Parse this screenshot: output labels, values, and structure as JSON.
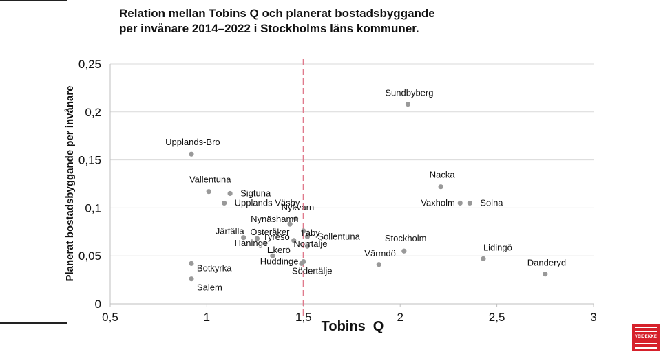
{
  "title_lines": [
    "Relation mellan Tobins Q och planerat bostadsbyggande",
    "per invånare 2014–2022 i Stockholms läns kommuner."
  ],
  "brand": {
    "logo_text": "VEIDEKKE",
    "accent": "#d6212b"
  },
  "chart_data": {
    "type": "scatter",
    "title": "",
    "xlabel": "Tobins  Q",
    "ylabel": "Planerat bostadsbyggande per invånare",
    "xlim": [
      0.5,
      3
    ],
    "ylim": [
      0,
      0.25
    ],
    "x_ticks": [
      0.5,
      1,
      1.5,
      2,
      2.5,
      3
    ],
    "y_ticks": [
      0,
      0.05,
      0.1,
      0.15,
      0.2,
      0.25
    ],
    "x_tick_labels": [
      "0,5",
      "1",
      "1,5",
      "2",
      "2,5",
      "3"
    ],
    "y_tick_labels": [
      "0",
      "0,05",
      "0,1",
      "0,15",
      "0,2",
      "0,25"
    ],
    "grid": "horizontal",
    "point_color": "#999999",
    "reference_line": {
      "x": 1.5,
      "style": "dashed",
      "color": "#e07a8c"
    },
    "points": [
      {
        "label": "Sundbyberg",
        "x": 2.04,
        "y": 0.208
      },
      {
        "label": "Upplands-Bro",
        "x": 0.92,
        "y": 0.156
      },
      {
        "label": "Nacka",
        "x": 2.21,
        "y": 0.122
      },
      {
        "label": "Vallentuna",
        "x": 1.01,
        "y": 0.117
      },
      {
        "label": "Sigtuna",
        "x": 1.12,
        "y": 0.115
      },
      {
        "label": "Upplands Väsby",
        "x": 1.09,
        "y": 0.105
      },
      {
        "label": "Vaxholm",
        "x": 2.31,
        "y": 0.105
      },
      {
        "label": "Solna",
        "x": 2.36,
        "y": 0.105
      },
      {
        "label": "Nykvarn",
        "x": 1.46,
        "y": 0.089
      },
      {
        "label": "Nynäshamn",
        "x": 1.43,
        "y": 0.083
      },
      {
        "label": "Täby",
        "x": 1.5,
        "y": 0.076
      },
      {
        "label": "Järfälla",
        "x": 1.19,
        "y": 0.069
      },
      {
        "label": "Österåker",
        "x": 1.26,
        "y": 0.068
      },
      {
        "label": "Sollentuna",
        "x": 1.52,
        "y": 0.07
      },
      {
        "label": "Haninge",
        "x": 1.3,
        "y": 0.063
      },
      {
        "label": "Tyresö",
        "x": 1.45,
        "y": 0.066
      },
      {
        "label": "Norrtälje",
        "x": 1.52,
        "y": 0.06
      },
      {
        "label": "Stockholm",
        "x": 2.02,
        "y": 0.055
      },
      {
        "label": "Ekerö",
        "x": 1.34,
        "y": 0.05
      },
      {
        "label": "Värmdö",
        "x": 1.89,
        "y": 0.041
      },
      {
        "label": "Lidingö",
        "x": 2.43,
        "y": 0.047
      },
      {
        "label": "Huddinge",
        "x": 1.5,
        "y": 0.044
      },
      {
        "label": "Södertälje",
        "x": 1.49,
        "y": 0.042
      },
      {
        "label": "Danderyd",
        "x": 2.75,
        "y": 0.031
      },
      {
        "label": "Botkyrka",
        "x": 0.92,
        "y": 0.042
      },
      {
        "label": "Salem",
        "x": 0.92,
        "y": 0.026
      }
    ]
  }
}
